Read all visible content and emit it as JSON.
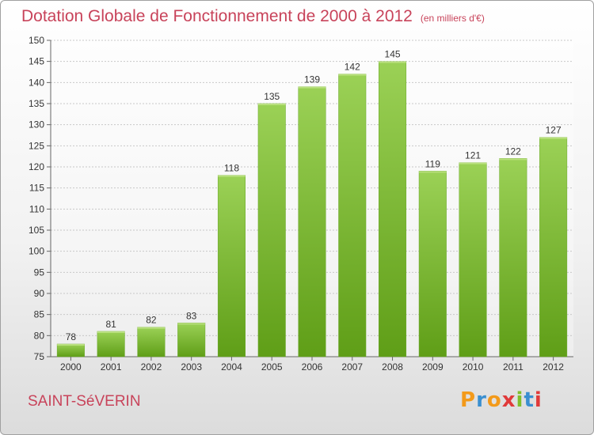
{
  "header": {
    "title": "Dotation Globale de Fonctionnement de 2000 à 2012",
    "unit": "(en milliers d'€)"
  },
  "footer": {
    "commune": "SAINT-SéVERIN",
    "logo": "Proxiti"
  },
  "colors": {
    "title": "#c8435a",
    "bar_top": "#9bd156",
    "bar_bottom": "#5f9e17"
  },
  "chart_data": {
    "type": "bar",
    "title": "Dotation Globale de Fonctionnement de 2000 à 2012",
    "subtitle": "(en milliers d'€)",
    "xlabel": "",
    "ylabel": "",
    "categories": [
      "2000",
      "2001",
      "2002",
      "2003",
      "2004",
      "2005",
      "2006",
      "2007",
      "2008",
      "2009",
      "2010",
      "2011",
      "2012"
    ],
    "values": [
      78,
      81,
      82,
      83,
      118,
      135,
      139,
      142,
      145,
      119,
      121,
      122,
      127
    ],
    "ylim": [
      75,
      150
    ],
    "yticks": [
      75,
      80,
      85,
      90,
      95,
      100,
      105,
      110,
      115,
      120,
      125,
      130,
      135,
      140,
      145,
      150
    ],
    "grid": true,
    "data_labels": true
  }
}
